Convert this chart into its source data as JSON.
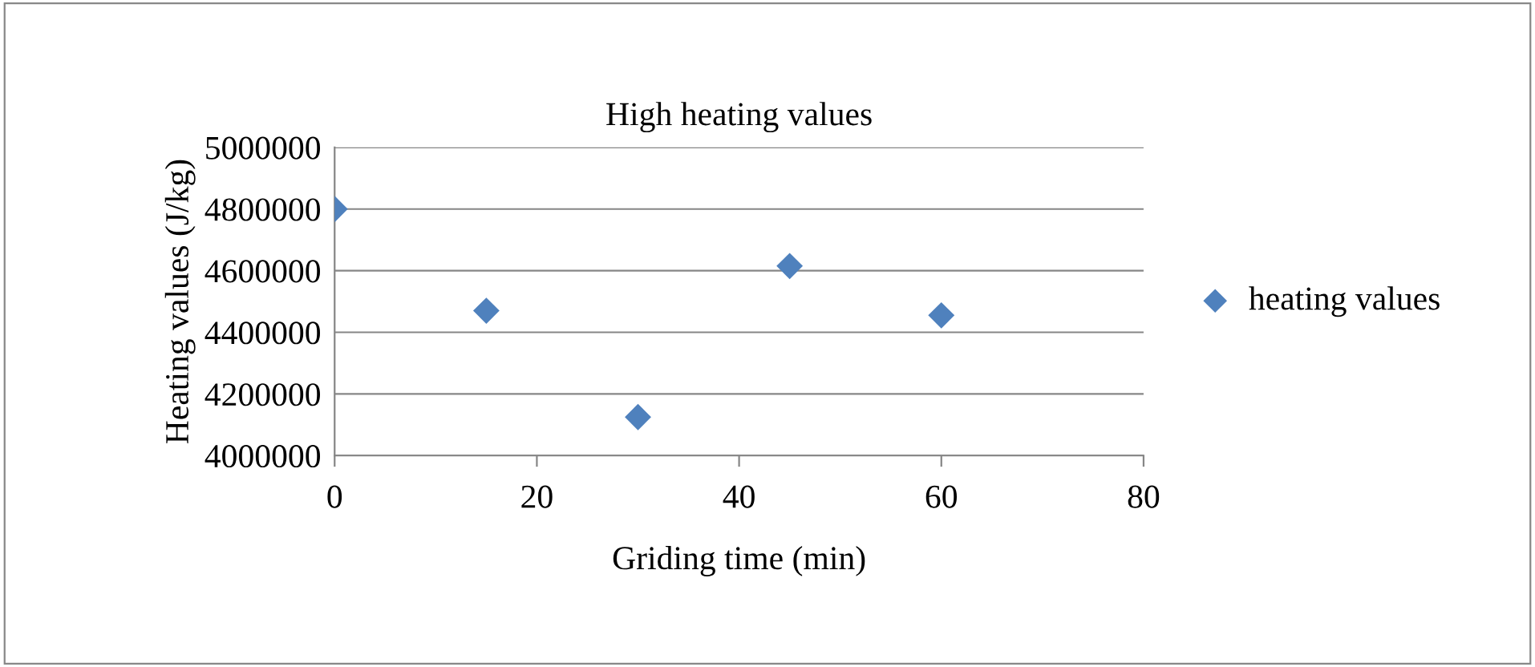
{
  "chart_data": {
    "type": "scatter",
    "title": "High heating values",
    "xlabel": "Griding time (min)",
    "ylabel": "Heating values (J/kg)",
    "x": [
      0,
      15,
      30,
      45,
      60
    ],
    "series": [
      {
        "name": "heating values",
        "color": "#4f81bd",
        "values": [
          4800000,
          4470000,
          4125000,
          4615000,
          4455000
        ]
      }
    ],
    "xlim": [
      0,
      80
    ],
    "xticks": [
      0,
      20,
      40,
      60,
      80
    ],
    "ylim": [
      4000000,
      5000000
    ],
    "yticks": [
      4000000,
      4200000,
      4400000,
      4600000,
      4800000,
      5000000
    ],
    "grid": "y",
    "legend": "right",
    "marker": "diamond"
  }
}
